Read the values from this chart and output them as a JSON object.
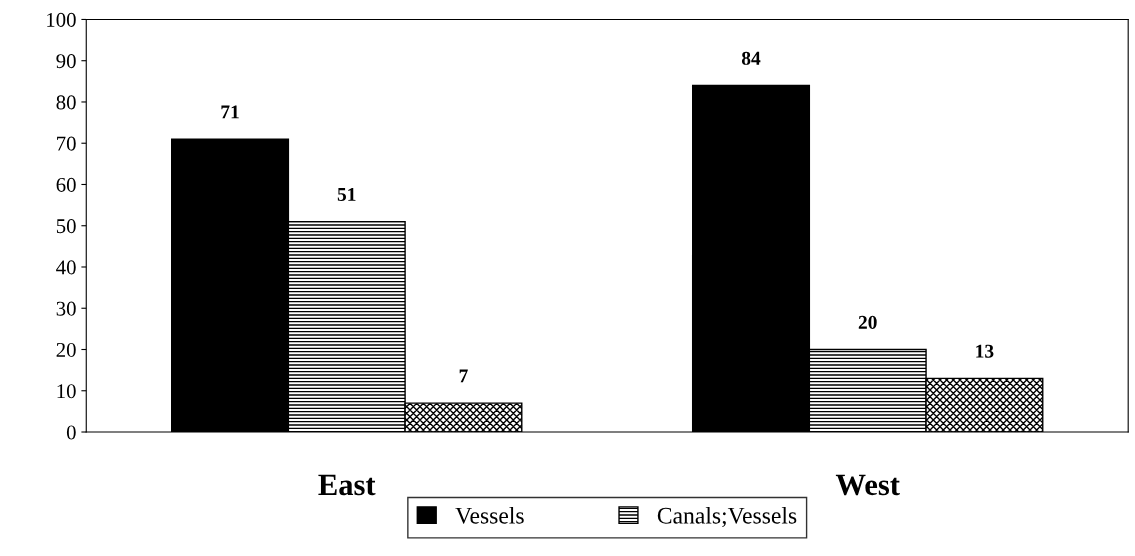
{
  "chart_data": {
    "type": "bar",
    "categories": [
      "East",
      "West"
    ],
    "series": [
      {
        "name": "Vessels",
        "color": "#000000",
        "values": [
          71,
          84
        ]
      },
      {
        "name": "Canals;Vessels",
        "color": "#000000",
        "values": [
          51,
          20
        ]
      },
      {
        "color": "#000000",
        "values": [
          7,
          13
        ]
      }
    ],
    "ylim": [
      0,
      100
    ],
    "yticks": [
      0,
      10,
      20,
      30,
      40,
      50,
      60,
      70,
      80,
      90,
      100
    ],
    "grid": false,
    "legend": "bottom",
    "data_labels": true
  }
}
